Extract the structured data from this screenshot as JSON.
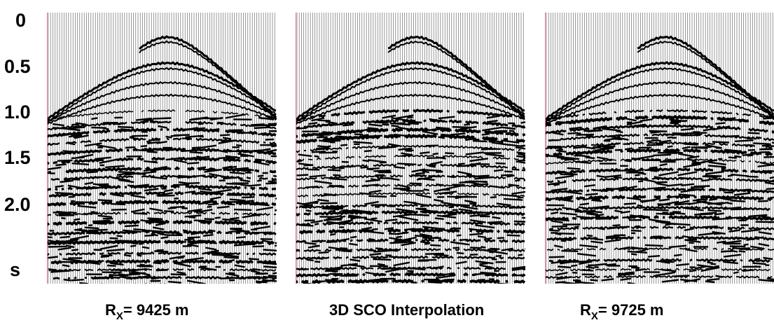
{
  "axis": {
    "ticks": [
      "0",
      "0.5",
      "1.0",
      "1.5",
      "2.0"
    ],
    "unit": "s"
  },
  "panels": [
    {
      "caption": {
        "main": "R",
        "sub": "X",
        "rest": "= 9425 m"
      }
    },
    {
      "caption": {
        "text": "3D SCO Interpolation"
      }
    },
    {
      "caption": {
        "main": "R",
        "sub": "X",
        "rest": "= 9725 m"
      }
    }
  ]
}
